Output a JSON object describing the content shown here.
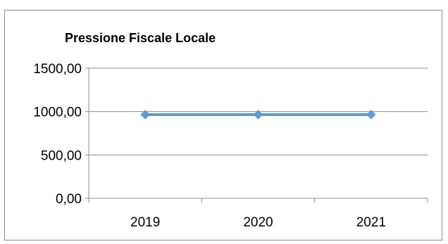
{
  "chart_data": {
    "type": "line",
    "title": "Pressione Fiscale Locale",
    "categories": [
      "2019",
      "2020",
      "2021"
    ],
    "series": [
      {
        "values": [
          965,
          965,
          965
        ],
        "color": "#5b9bd5"
      }
    ],
    "y_ticks": [
      "0,00",
      "500,00",
      "1000,00",
      "1500,00"
    ],
    "y_tick_values": [
      0,
      500,
      1000,
      1500
    ],
    "ylim": [
      0,
      1500
    ],
    "grid": true,
    "legend": "none",
    "marker": "diamond"
  }
}
